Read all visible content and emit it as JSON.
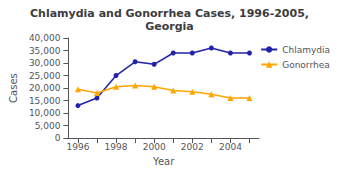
{
  "chart_data": {
    "type": "line",
    "title": "Chlamydia and Gonorrhea Cases, 1996-2005,\nGeorgia",
    "x_label": "Year",
    "y_label": "Cases",
    "categories": [
      "1996",
      null,
      "1998",
      null,
      "2000",
      null,
      "2002",
      null,
      "2004",
      null
    ],
    "series": [
      {
        "name": "Chlamydia",
        "color": "#2222AA",
        "marker": "circle",
        "values": [
          13000,
          16000,
          25000,
          30500,
          29500,
          34000,
          34000,
          36000,
          34000,
          34000
        ]
      },
      {
        "name": "Gonorrhea",
        "color": "#FFA500",
        "marker": "triangle",
        "values": [
          19500,
          18000,
          20500,
          21000,
          20500,
          19000,
          18500,
          17500,
          16000,
          16000
        ]
      }
    ],
    "ylim": [
      0,
      40000
    ],
    "yticks": [
      0,
      {
        "value": 5000,
        "label": "5,000"
      },
      {
        "value": 10000,
        "label": "10,000"
      },
      {
        "value": 15000,
        "label": "15,000"
      },
      {
        "value": 20000,
        "label": "20,000"
      },
      {
        "value": 25000,
        "label": "25,000"
      },
      {
        "value": 30000,
        "label": "30,000"
      },
      {
        "value": 35000,
        "label": "35,000"
      },
      {
        "value": 40000,
        "label": "40,000"
      }
    ],
    "grid": false,
    "legend": "upper right"
  }
}
